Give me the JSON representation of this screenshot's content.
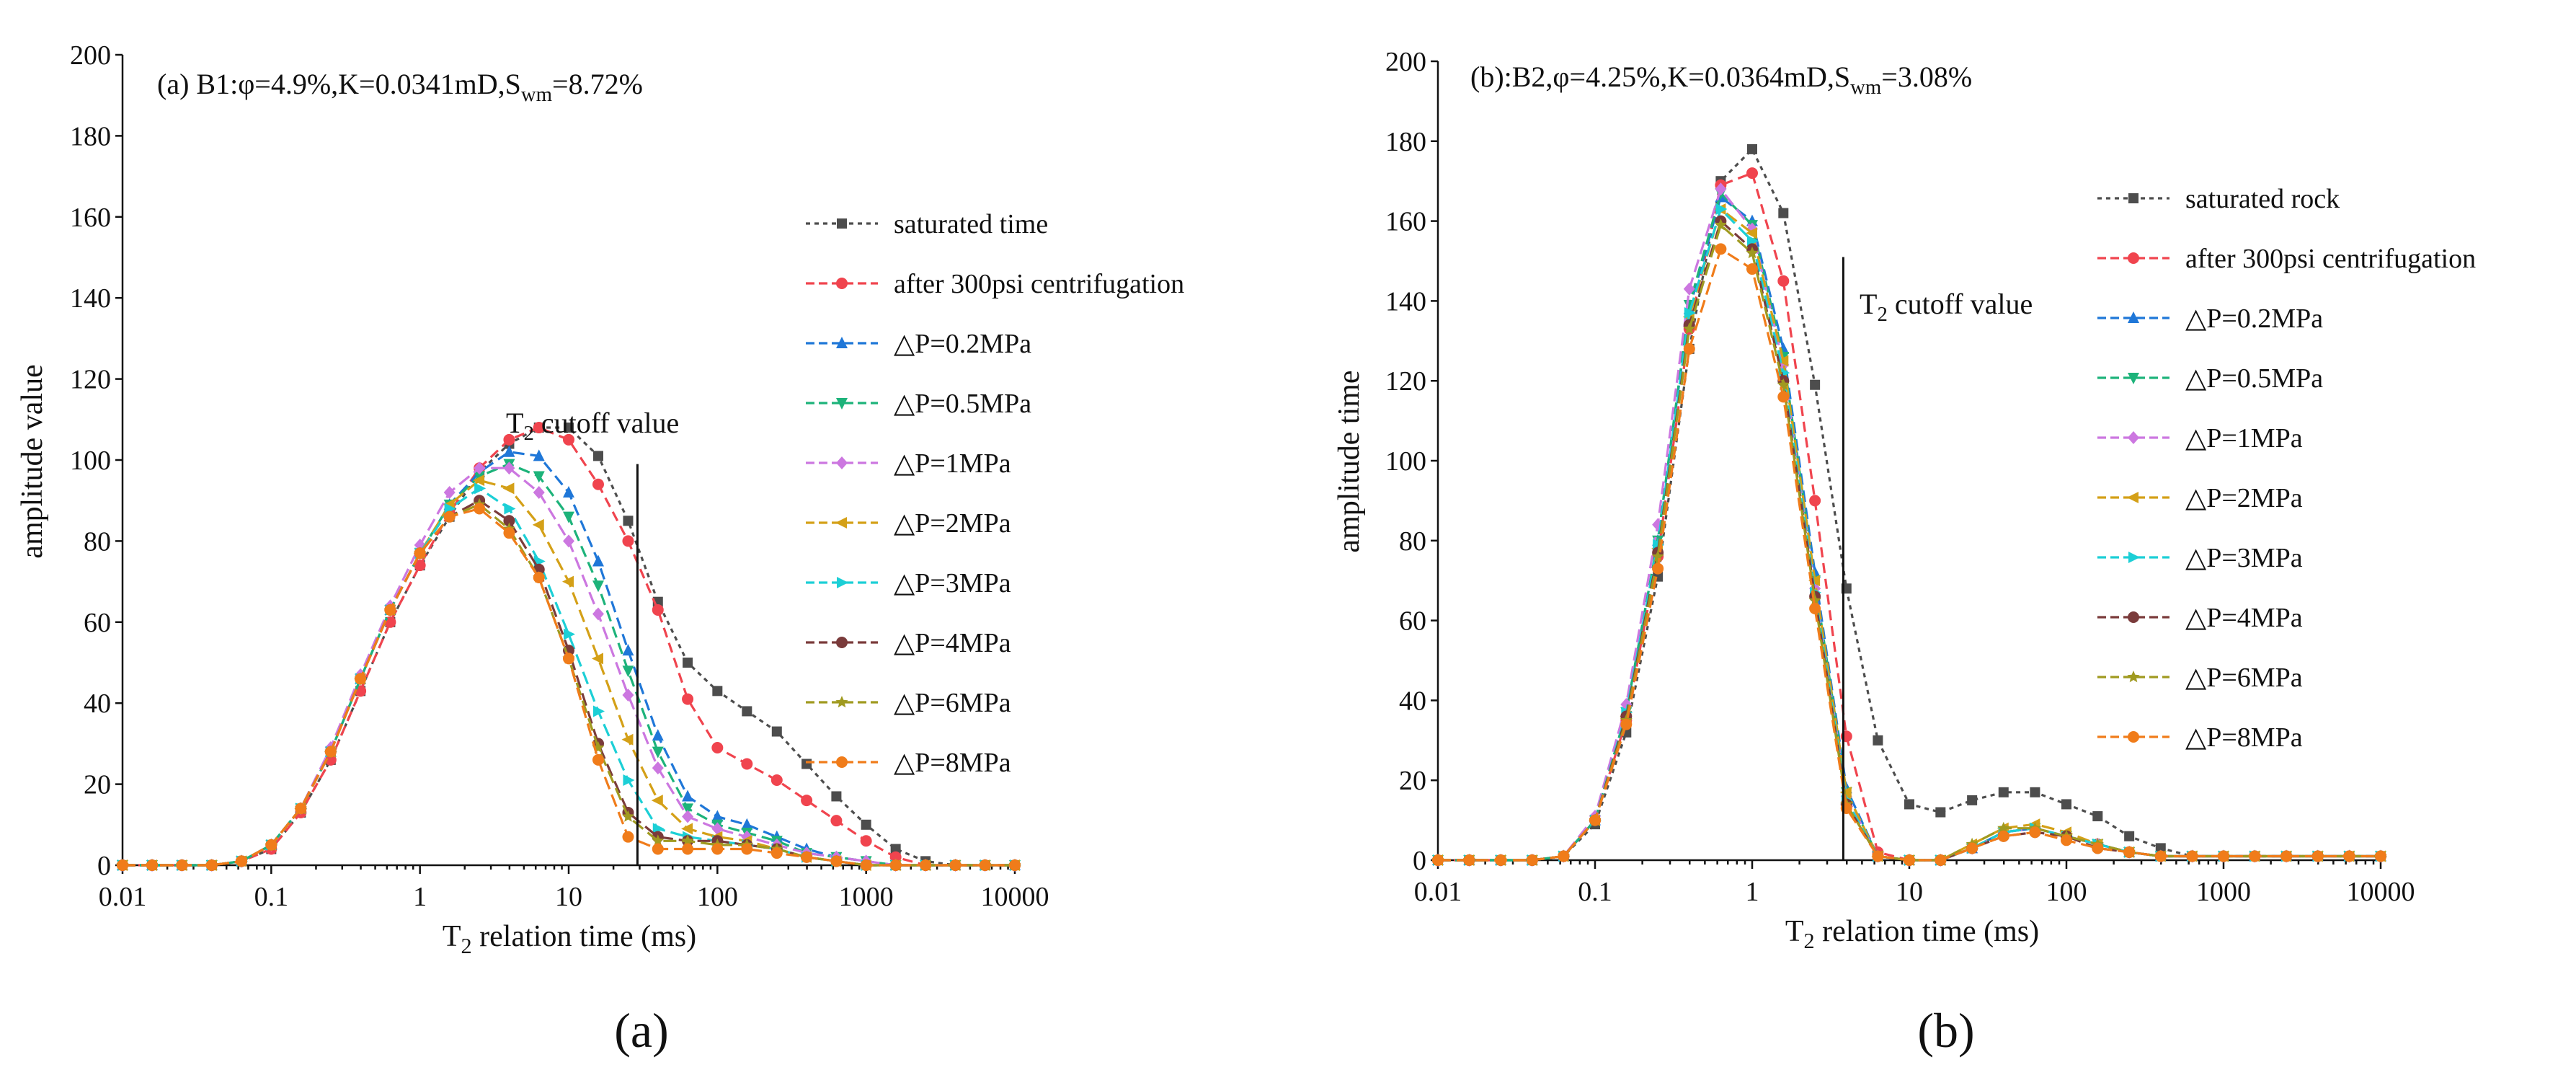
{
  "chart_data": [
    {
      "type": "line",
      "panel_label": "(a)",
      "title": "(a) B1:φ=4.9%,K=0.0341mD,S",
      "title_sub": "wm",
      "title_suffix": "=8.72%",
      "xlabel": "T",
      "xlabel_sub": "2",
      "xlabel_suffix": " relation time (ms)",
      "ylabel": "amplitude value",
      "xscale": "log",
      "xlim": [
        0.01,
        10000
      ],
      "ylim": [
        0,
        200
      ],
      "x_ticks": [
        "0.01",
        "0.1",
        "1",
        "10",
        "100",
        "1000",
        "10000"
      ],
      "y_ticks": [
        "0",
        "20",
        "40",
        "60",
        "80",
        "100",
        "120",
        "140",
        "160",
        "180",
        "200"
      ],
      "cutoff": {
        "x": 29.0,
        "y_top": 99,
        "label": "T",
        "label_sub": "2",
        "label_suffix": " cutoff value"
      },
      "legend_position": "right",
      "x": [
        0.01,
        0.0158,
        0.0251,
        0.0398,
        0.0631,
        0.1,
        0.158,
        0.251,
        0.398,
        0.631,
        1,
        1.58,
        2.51,
        3.98,
        6.31,
        10,
        15.8,
        25.1,
        39.8,
        63.1,
        100,
        158,
        251,
        398,
        631,
        1000,
        1580,
        2510,
        3980,
        6310,
        10000
      ],
      "series": [
        {
          "name": "saturated time",
          "color": "#4d4d4d",
          "marker": "square",
          "values": [
            0,
            0,
            0,
            0,
            1,
            4,
            13,
            26,
            43,
            60,
            74,
            86,
            97,
            104,
            108,
            108,
            101,
            85,
            65,
            50,
            43,
            38,
            33,
            25,
            17,
            10,
            4,
            1,
            0,
            0,
            0
          ]
        },
        {
          "name": "after 300psi centrifugation",
          "color": "#f0444e",
          "marker": "circle",
          "values": [
            0,
            0,
            0,
            0,
            1,
            4,
            13,
            26,
            43,
            60,
            74,
            87,
            98,
            105,
            108,
            105,
            94,
            80,
            63,
            41,
            29,
            25,
            21,
            16,
            11,
            6,
            2,
            0,
            0,
            0,
            0
          ]
        },
        {
          "name": "△P=0.2MPa",
          "color": "#1f77d8",
          "marker": "triangle-up",
          "values": [
            0,
            0,
            0,
            0,
            1,
            5,
            14,
            28,
            46,
            63,
            77,
            89,
            97,
            102,
            101,
            92,
            75,
            53,
            32,
            17,
            12,
            10,
            7,
            4,
            2,
            1,
            0,
            0,
            0,
            0,
            0
          ]
        },
        {
          "name": "△P=0.5MPa",
          "color": "#1db37a",
          "marker": "triangle-down",
          "values": [
            0,
            0,
            0,
            0,
            1,
            5,
            14,
            28,
            46,
            63,
            77,
            89,
            96,
            99,
            96,
            86,
            69,
            48,
            28,
            14,
            10,
            8,
            6,
            3,
            2,
            1,
            0,
            0,
            0,
            0,
            0
          ]
        },
        {
          "name": "△P=1MPa",
          "color": "#cc77e0",
          "marker": "diamond",
          "values": [
            0,
            0,
            0,
            0,
            1,
            5,
            14,
            29,
            47,
            64,
            79,
            92,
            98,
            98,
            92,
            80,
            62,
            42,
            24,
            12,
            9,
            7,
            5,
            3,
            2,
            1,
            0,
            0,
            0,
            0,
            0
          ]
        },
        {
          "name": "△P=2MPa",
          "color": "#d4a017",
          "marker": "triangle-left",
          "values": [
            0,
            0,
            0,
            0,
            1,
            5,
            14,
            28,
            46,
            63,
            77,
            89,
            95,
            93,
            84,
            70,
            51,
            31,
            16,
            9,
            7,
            6,
            4,
            2,
            1,
            0,
            0,
            0,
            0,
            0,
            0
          ]
        },
        {
          "name": "△P=3MPa",
          "color": "#1ccfd6",
          "marker": "triangle-right",
          "values": [
            0,
            0,
            0,
            0,
            1,
            5,
            14,
            28,
            46,
            63,
            77,
            88,
            93,
            88,
            75,
            57,
            38,
            21,
            9,
            7,
            6,
            5,
            4,
            2,
            1,
            0,
            0,
            0,
            0,
            0,
            0
          ]
        },
        {
          "name": "△P=4MPa",
          "color": "#7a3b3b",
          "marker": "circle",
          "values": [
            0,
            0,
            0,
            0,
            1,
            5,
            14,
            28,
            46,
            63,
            77,
            86,
            90,
            85,
            73,
            53,
            30,
            13,
            7,
            6,
            6,
            5,
            4,
            2,
            1,
            0,
            0,
            0,
            0,
            0,
            0
          ]
        },
        {
          "name": "△P=6MPa",
          "color": "#a09a20",
          "marker": "star",
          "values": [
            0,
            0,
            0,
            0,
            1,
            5,
            14,
            28,
            46,
            63,
            77,
            86,
            89,
            83,
            71,
            51,
            29,
            12,
            6,
            6,
            5,
            5,
            4,
            2,
            1,
            0,
            0,
            0,
            0,
            0,
            0
          ]
        },
        {
          "name": "△P=8MPa",
          "color": "#f07c1a",
          "marker": "circle",
          "values": [
            0,
            0,
            0,
            0,
            1,
            5,
            14,
            28,
            46,
            63,
            77,
            86,
            88,
            82,
            71,
            51,
            26,
            7,
            4,
            4,
            4,
            4,
            3,
            2,
            1,
            0,
            0,
            0,
            0,
            0,
            0
          ]
        }
      ]
    },
    {
      "type": "line",
      "panel_label": "(b)",
      "title": "(b):B2,φ=4.25%,K=0.0364mD,S",
      "title_sub": "wm",
      "title_suffix": "=3.08%",
      "xlabel": "T",
      "xlabel_sub": "2",
      "xlabel_suffix": " relation time (ms)",
      "ylabel": "amplitude time",
      "xscale": "log",
      "xlim": [
        0.01,
        10000
      ],
      "ylim": [
        0,
        200
      ],
      "x_ticks": [
        "0.01",
        "0.1",
        "1",
        "10",
        "100",
        "1000",
        "10000"
      ],
      "y_ticks": [
        "0",
        "20",
        "40",
        "60",
        "80",
        "100",
        "120",
        "140",
        "160",
        "180",
        "200"
      ],
      "cutoff": {
        "x": 3.8,
        "y_top": 151,
        "label": "T",
        "label_sub": "2",
        "label_suffix": " cutoff value"
      },
      "legend_position": "right",
      "x": [
        0.01,
        0.0158,
        0.0251,
        0.0398,
        0.0631,
        0.1,
        0.158,
        0.251,
        0.398,
        0.631,
        1,
        1.58,
        2.51,
        3.98,
        6.31,
        10,
        15.8,
        25.1,
        39.8,
        63.1,
        100,
        158,
        251,
        398,
        631,
        1000,
        1580,
        2510,
        3980,
        6310,
        10000
      ],
      "series": [
        {
          "name": "saturated rock",
          "color": "#4d4d4d",
          "marker": "square",
          "values": [
            0,
            0,
            0,
            0,
            1,
            9,
            32,
            71,
            128,
            170,
            178,
            162,
            119,
            68,
            30,
            14,
            12,
            15,
            17,
            17,
            14,
            11,
            6,
            3,
            1,
            1,
            1,
            1,
            1,
            1,
            1
          ]
        },
        {
          "name": "after 300psi centrifugation",
          "color": "#f0444e",
          "marker": "circle",
          "values": [
            0,
            0,
            0,
            0,
            1,
            10,
            35,
            76,
            133,
            169,
            172,
            145,
            90,
            31,
            2,
            0,
            0,
            3,
            7,
            8,
            6,
            4,
            2,
            1,
            1,
            1,
            1,
            1,
            1,
            1,
            1
          ]
        },
        {
          "name": "△P=0.2MPa",
          "color": "#1f77d8",
          "marker": "triangle-up",
          "values": [
            0,
            0,
            0,
            0,
            1,
            10,
            37,
            80,
            138,
            166,
            160,
            128,
            72,
            18,
            1,
            0,
            0,
            3,
            7,
            8,
            6,
            4,
            2,
            1,
            1,
            1,
            1,
            1,
            1,
            1,
            1
          ]
        },
        {
          "name": "△P=0.5MPa",
          "color": "#1db37a",
          "marker": "triangle-down",
          "values": [
            0,
            0,
            0,
            0,
            1,
            10,
            37,
            80,
            139,
            167,
            159,
            126,
            70,
            17,
            1,
            0,
            0,
            3,
            7,
            8,
            6,
            4,
            2,
            1,
            1,
            1,
            1,
            1,
            1,
            1,
            1
          ]
        },
        {
          "name": "△P=1MPa",
          "color": "#cc77e0",
          "marker": "diamond",
          "values": [
            0,
            0,
            0,
            0,
            1,
            11,
            39,
            84,
            143,
            168,
            158,
            124,
            68,
            16,
            1,
            0,
            0,
            3,
            7,
            8,
            6,
            4,
            2,
            1,
            1,
            1,
            1,
            1,
            1,
            1,
            1
          ]
        },
        {
          "name": "△P=2MPa",
          "color": "#d4a017",
          "marker": "triangle-left",
          "values": [
            0,
            0,
            0,
            0,
            1,
            10,
            36,
            78,
            136,
            163,
            157,
            125,
            70,
            17,
            1,
            0,
            0,
            4,
            8,
            9,
            7,
            4,
            2,
            1,
            1,
            1,
            1,
            1,
            1,
            1,
            1
          ]
        },
        {
          "name": "△P=3MPa",
          "color": "#1ccfd6",
          "marker": "triangle-right",
          "values": [
            0,
            0,
            0,
            0,
            1,
            10,
            37,
            79,
            137,
            163,
            155,
            122,
            67,
            15,
            1,
            0,
            0,
            3,
            7,
            8,
            6,
            4,
            2,
            1,
            1,
            1,
            1,
            1,
            1,
            1,
            1
          ]
        },
        {
          "name": "△P=4MPa",
          "color": "#7a3b3b",
          "marker": "circle",
          "values": [
            0,
            0,
            0,
            0,
            1,
            10,
            36,
            77,
            134,
            160,
            153,
            120,
            66,
            14,
            1,
            0,
            0,
            3,
            6,
            7,
            6,
            3,
            2,
            1,
            1,
            1,
            1,
            1,
            1,
            1,
            1
          ]
        },
        {
          "name": "△P=6MPa",
          "color": "#a09a20",
          "marker": "star",
          "values": [
            0,
            0,
            0,
            0,
            1,
            10,
            35,
            76,
            133,
            159,
            152,
            119,
            65,
            14,
            1,
            0,
            0,
            4,
            8,
            8,
            6,
            4,
            2,
            1,
            1,
            1,
            1,
            1,
            1,
            1,
            1
          ]
        },
        {
          "name": "△P=8MPa",
          "color": "#f07c1a",
          "marker": "circle",
          "values": [
            0,
            0,
            0,
            0,
            1,
            10,
            34,
            73,
            128,
            153,
            148,
            116,
            63,
            13,
            1,
            0,
            0,
            3,
            6,
            7,
            5,
            3,
            2,
            1,
            1,
            1,
            1,
            1,
            1,
            1,
            1
          ]
        }
      ]
    }
  ]
}
